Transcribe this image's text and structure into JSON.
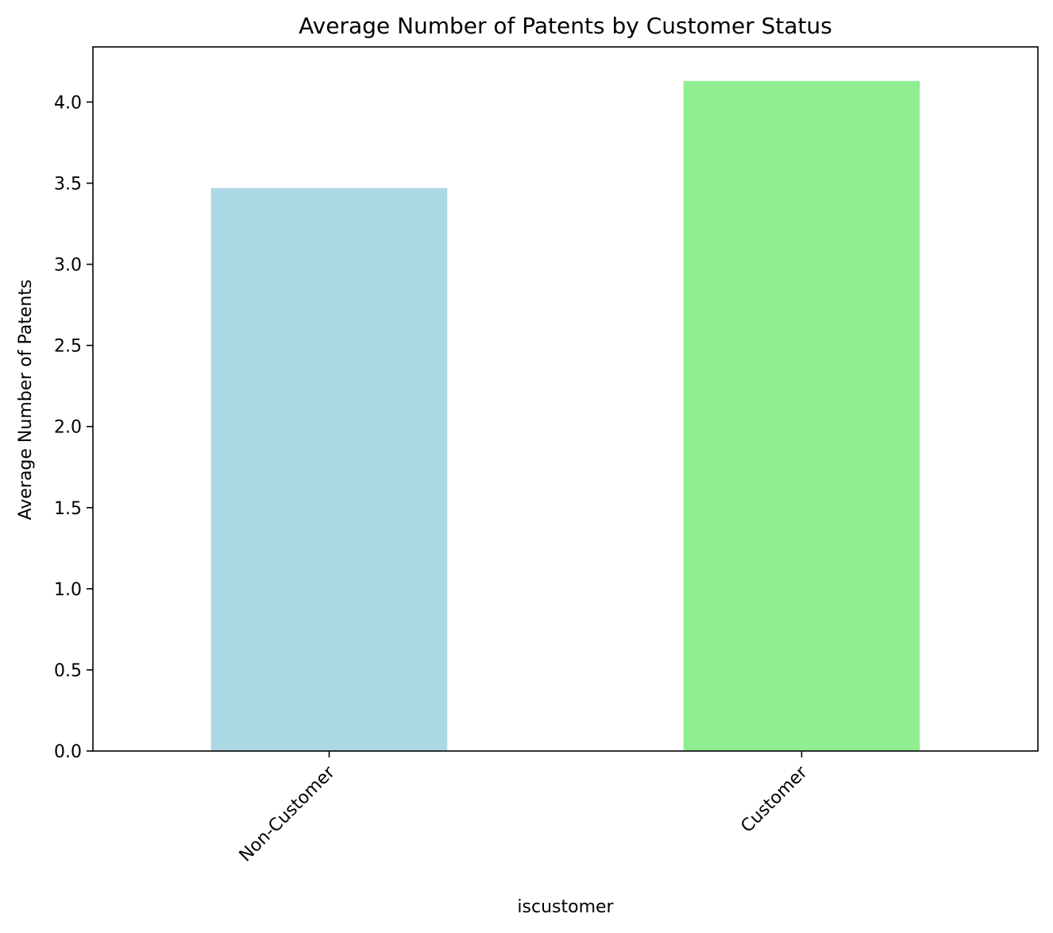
{
  "chart_data": {
    "type": "bar",
    "title": "Average Number of Patents by Customer Status",
    "xlabel": "iscustomer",
    "ylabel": "Average Number of Patents",
    "categories": [
      "Non-Customer",
      "Customer"
    ],
    "values": [
      3.47,
      4.13
    ],
    "colors": [
      "#add8e6",
      "#90ee90"
    ],
    "ylim": [
      0,
      4.34
    ],
    "yticks": [
      0.0,
      0.5,
      1.0,
      1.5,
      2.0,
      2.5,
      3.0,
      3.5,
      4.0
    ],
    "ytick_labels": [
      "0.0",
      "0.5",
      "1.0",
      "1.5",
      "2.0",
      "2.5",
      "3.0",
      "3.5",
      "4.0"
    ],
    "xtick_rotation": 45,
    "grid": false,
    "legend": false
  }
}
